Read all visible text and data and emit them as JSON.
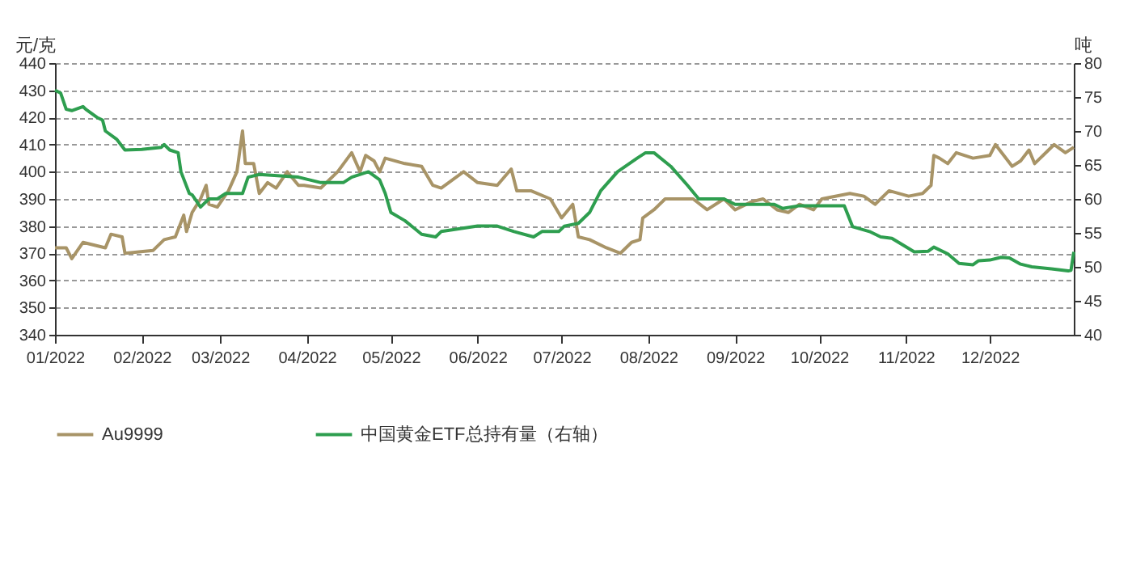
{
  "chart_data": {
    "type": "line",
    "ylabel": "元/克",
    "y2label": "吨",
    "xlim": [
      "2022-01-01",
      "2022-12-31"
    ],
    "xticks": [
      {
        "value": "2022-01-01",
        "label": "01/2022"
      },
      {
        "value": "2022-02-01",
        "label": "02/2022"
      },
      {
        "value": "2022-03-01",
        "label": "03/2022"
      },
      {
        "value": "2022-04-01",
        "label": "04/2022"
      },
      {
        "value": "2022-05-01",
        "label": "05/2022"
      },
      {
        "value": "2022-06-01",
        "label": "06/2022"
      },
      {
        "value": "2022-07-01",
        "label": "07/2022"
      },
      {
        "value": "2022-08-01",
        "label": "08/2022"
      },
      {
        "value": "2022-09-01",
        "label": "09/2022"
      },
      {
        "value": "2022-10-01",
        "label": "10/2022"
      },
      {
        "value": "2022-11-01",
        "label": "11/2022"
      },
      {
        "value": "2022-12-01",
        "label": "12/2022"
      }
    ],
    "ylim": [
      340,
      440
    ],
    "yticks": [
      340,
      350,
      360,
      370,
      380,
      390,
      400,
      410,
      420,
      430,
      440
    ],
    "y2lim": [
      40,
      80
    ],
    "y2ticks": [
      40,
      45,
      50,
      55,
      60,
      65,
      70,
      75,
      80
    ],
    "grid": "y",
    "legend": "bottom",
    "marker": "none",
    "line_style": "solid",
    "series": [
      {
        "name": "Au9999",
        "color": "#a89467",
        "x": [
          "2022-01-01",
          "2022-01-05",
          "2022-01-07",
          "2022-01-11",
          "2022-01-19",
          "2022-01-21",
          "2022-01-25",
          "2022-01-26",
          "2022-02-05",
          "2022-02-09",
          "2022-02-13",
          "2022-02-16",
          "2022-02-17",
          "2022-02-19",
          "2022-02-22",
          "2022-02-24",
          "2022-02-25",
          "2022-02-28",
          "2022-03-04",
          "2022-03-07",
          "2022-03-09",
          "2022-03-10",
          "2022-03-13",
          "2022-03-15",
          "2022-03-18",
          "2022-03-21",
          "2022-03-23",
          "2022-03-25",
          "2022-03-29",
          "2022-03-31",
          "2022-04-06",
          "2022-04-12",
          "2022-04-17",
          "2022-04-20",
          "2022-04-22",
          "2022-04-25",
          "2022-04-27",
          "2022-04-29",
          "2022-05-06",
          "2022-05-12",
          "2022-05-16",
          "2022-05-19",
          "2022-05-27",
          "2022-06-01",
          "2022-06-08",
          "2022-06-13",
          "2022-06-15",
          "2022-06-20",
          "2022-06-27",
          "2022-07-01",
          "2022-07-05",
          "2022-07-07",
          "2022-07-11",
          "2022-07-17",
          "2022-07-22",
          "2022-07-26",
          "2022-07-29",
          "2022-07-30",
          "2022-08-03",
          "2022-08-07",
          "2022-08-11",
          "2022-08-17",
          "2022-08-22",
          "2022-08-28",
          "2022-09-01",
          "2022-09-07",
          "2022-09-11",
          "2022-09-16",
          "2022-09-20",
          "2022-09-24",
          "2022-09-29",
          "2022-10-02",
          "2022-10-12",
          "2022-10-17",
          "2022-10-21",
          "2022-10-26",
          "2022-11-02",
          "2022-11-07",
          "2022-11-10",
          "2022-11-11",
          "2022-11-13",
          "2022-11-16",
          "2022-11-19",
          "2022-11-25",
          "2022-12-01",
          "2022-12-03",
          "2022-12-09",
          "2022-12-12",
          "2022-12-15",
          "2022-12-17",
          "2022-12-22",
          "2022-12-24",
          "2022-12-28",
          "2022-12-31"
        ],
        "values": [
          372,
          372,
          368,
          374,
          372,
          377,
          376,
          370,
          371,
          375,
          376,
          384,
          378,
          385,
          390,
          395,
          388,
          387,
          393,
          400,
          415,
          403,
          403,
          392,
          396,
          394,
          397,
          400,
          395,
          395,
          394,
          400,
          407,
          400,
          406,
          404,
          400,
          405,
          403,
          402,
          395,
          394,
          400,
          396,
          395,
          401,
          393,
          393,
          390,
          383,
          388,
          376,
          375,
          372,
          370,
          374,
          375,
          383,
          386,
          390,
          390,
          390,
          386,
          390,
          386,
          389,
          390,
          386,
          385,
          388,
          386,
          390,
          392,
          391,
          388,
          393,
          391,
          392,
          395,
          406,
          405,
          403,
          407,
          405,
          406,
          410,
          402,
          404,
          408,
          403,
          408,
          410,
          407,
          409
        ]
      },
      {
        "name": "中国黄金ETF总持有量（右轴）",
        "color": "#2e9e4f",
        "axis": "y2",
        "x": [
          "2022-01-01",
          "2022-01-03",
          "2022-01-05",
          "2022-01-07",
          "2022-01-11",
          "2022-01-12",
          "2022-01-16",
          "2022-01-18",
          "2022-01-19",
          "2022-01-23",
          "2022-01-26",
          "2022-02-01",
          "2022-02-08",
          "2022-02-09",
          "2022-02-11",
          "2022-02-14",
          "2022-02-15",
          "2022-02-18",
          "2022-02-19",
          "2022-02-22",
          "2022-02-25",
          "2022-02-28",
          "2022-03-03",
          "2022-03-09",
          "2022-03-11",
          "2022-03-15",
          "2022-03-29",
          "2022-04-06",
          "2022-04-14",
          "2022-04-17",
          "2022-04-23",
          "2022-04-27",
          "2022-04-29",
          "2022-05-01",
          "2022-05-06",
          "2022-05-12",
          "2022-05-17",
          "2022-05-19",
          "2022-06-01",
          "2022-06-08",
          "2022-06-14",
          "2022-06-21",
          "2022-06-24",
          "2022-06-30",
          "2022-07-02",
          "2022-07-07",
          "2022-07-11",
          "2022-07-15",
          "2022-07-21",
          "2022-07-28",
          "2022-07-31",
          "2022-08-03",
          "2022-08-09",
          "2022-08-15",
          "2022-08-19",
          "2022-08-23",
          "2022-08-28",
          "2022-09-01",
          "2022-09-15",
          "2022-09-18",
          "2022-09-24",
          "2022-09-30",
          "2022-10-10",
          "2022-10-13",
          "2022-10-19",
          "2022-10-23",
          "2022-10-27",
          "2022-11-02",
          "2022-11-04",
          "2022-11-09",
          "2022-11-11",
          "2022-11-16",
          "2022-11-20",
          "2022-11-25",
          "2022-11-27",
          "2022-12-01",
          "2022-12-05",
          "2022-12-08",
          "2022-12-12",
          "2022-12-16",
          "2022-12-23",
          "2022-12-29",
          "2022-12-30",
          "2022-12-31"
        ],
        "values": [
          76,
          75.6,
          73.2,
          73,
          73.6,
          73.2,
          72,
          71.6,
          70,
          68.8,
          67.2,
          67.3,
          67.6,
          68,
          67.2,
          66.8,
          64,
          60.8,
          60.6,
          58.8,
          60,
          60,
          60.8,
          60.8,
          63.2,
          63.6,
          63.2,
          62.4,
          62.4,
          63.2,
          64,
          62.8,
          60.8,
          58,
          56.8,
          54.8,
          54.4,
          55.2,
          56,
          56,
          55.2,
          54.4,
          55.2,
          55.2,
          56,
          56.4,
          58,
          61.2,
          64,
          66,
          66.8,
          66.8,
          64.8,
          62,
          60,
          60,
          60,
          59.2,
          59.2,
          58.6,
          59,
          59,
          59,
          55.9,
          55.2,
          54.4,
          54.2,
          52.7,
          52.2,
          52.3,
          52.9,
          51.9,
          50.5,
          50.3,
          50.9,
          51,
          51.4,
          51.3,
          50.4,
          50,
          49.7,
          49.4,
          49.5,
          52.2
        ]
      }
    ]
  }
}
